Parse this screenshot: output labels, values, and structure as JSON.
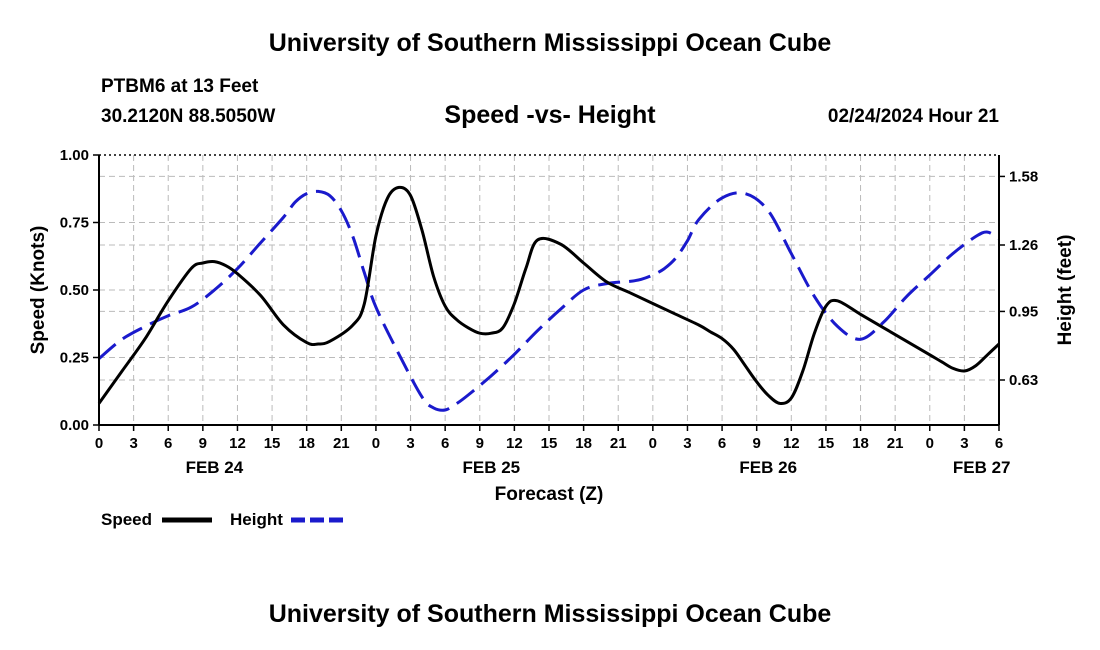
{
  "header": {
    "top_title": "University of Southern Mississippi Ocean Cube",
    "station": "PTBM6 at 13 Feet",
    "coords": "30.2120N  88.5050W",
    "subtitle": "Speed -vs- Height",
    "date": "02/24/2024 Hour 21",
    "bottom_title": "University of Southern Mississippi Ocean Cube"
  },
  "chart_data": {
    "type": "line",
    "title": "Speed -vs- Height",
    "xlabel": "Forecast (Z)",
    "ylabel": "Speed (Knots)",
    "y2label": "Height (feet)",
    "x_range_hours": [
      0,
      78
    ],
    "ylim": [
      0,
      1
    ],
    "y2lim": [
      0.42,
      1.68
    ],
    "y_ticks": [
      "0.00",
      "0.25",
      "0.50",
      "0.75",
      "1.00"
    ],
    "y2_ticks": [
      "0.63",
      "0.95",
      "1.26",
      "1.58"
    ],
    "y2_tick_values": [
      0.63,
      0.95,
      1.26,
      1.58
    ],
    "x_tick_labels": [
      "0",
      "3",
      "6",
      "9",
      "12",
      "15",
      "18",
      "21",
      "0",
      "3",
      "6",
      "9",
      "12",
      "15",
      "18",
      "21",
      "0",
      "3",
      "6",
      "9",
      "12",
      "15",
      "18",
      "21",
      "0",
      "3",
      "6"
    ],
    "day_labels": [
      {
        "label": "FEB 24",
        "hour": 10
      },
      {
        "label": "FEB 25",
        "hour": 34
      },
      {
        "label": "FEB 26",
        "hour": 58
      },
      {
        "label": "FEB 27",
        "hour": 76.5
      }
    ],
    "grid": true,
    "legend": [
      "Speed",
      "Height"
    ],
    "series": [
      {
        "name": "Speed",
        "axis": "left",
        "color": "#000000",
        "dash": false,
        "x": [
          0,
          2,
          4,
          6,
          8,
          9,
          10,
          11,
          12,
          14,
          16,
          18,
          19,
          20,
          22,
          23,
          24,
          25,
          26,
          27,
          28,
          29,
          30,
          31,
          32,
          33,
          34,
          35,
          36,
          37,
          38,
          40,
          42,
          44,
          46,
          48,
          50,
          52,
          53,
          54,
          55,
          56,
          57,
          58,
          59,
          60,
          61,
          62,
          63,
          64,
          66,
          68,
          70,
          72,
          73,
          74,
          75,
          76,
          77,
          78
        ],
        "values": [
          0.08,
          0.2,
          0.32,
          0.46,
          0.58,
          0.6,
          0.605,
          0.59,
          0.56,
          0.48,
          0.37,
          0.305,
          0.3,
          0.31,
          0.37,
          0.45,
          0.7,
          0.84,
          0.88,
          0.85,
          0.72,
          0.55,
          0.44,
          0.39,
          0.36,
          0.34,
          0.34,
          0.36,
          0.45,
          0.58,
          0.685,
          0.67,
          0.6,
          0.53,
          0.49,
          0.45,
          0.41,
          0.37,
          0.345,
          0.32,
          0.28,
          0.22,
          0.16,
          0.11,
          0.08,
          0.1,
          0.2,
          0.34,
          0.44,
          0.46,
          0.41,
          0.36,
          0.31,
          0.26,
          0.235,
          0.21,
          0.2,
          0.22,
          0.26,
          0.3
        ]
      },
      {
        "name": "Height",
        "axis": "right",
        "color": "#1a1acc",
        "dash": true,
        "x": [
          0,
          2,
          4,
          6,
          8,
          10,
          12,
          14,
          16,
          17,
          18,
          19,
          20,
          21,
          22,
          23,
          24,
          26,
          28,
          29,
          30,
          31,
          32,
          34,
          36,
          38,
          40,
          42,
          44,
          46,
          47,
          48,
          49,
          50,
          51,
          52,
          54,
          56,
          58,
          60,
          62,
          64,
          66,
          68,
          70,
          72,
          74,
          76,
          77,
          78
        ],
        "values": [
          0.73,
          0.82,
          0.88,
          0.93,
          0.97,
          1.05,
          1.15,
          1.27,
          1.39,
          1.46,
          1.5,
          1.51,
          1.49,
          1.42,
          1.3,
          1.13,
          0.97,
          0.75,
          0.55,
          0.5,
          0.49,
          0.52,
          0.56,
          0.65,
          0.75,
          0.86,
          0.96,
          1.05,
          1.08,
          1.09,
          1.1,
          1.12,
          1.15,
          1.2,
          1.28,
          1.38,
          1.48,
          1.5,
          1.42,
          1.22,
          1.02,
          0.88,
          0.82,
          0.9,
          1.02,
          1.12,
          1.22,
          1.3,
          1.32,
          1.29
        ]
      }
    ]
  }
}
